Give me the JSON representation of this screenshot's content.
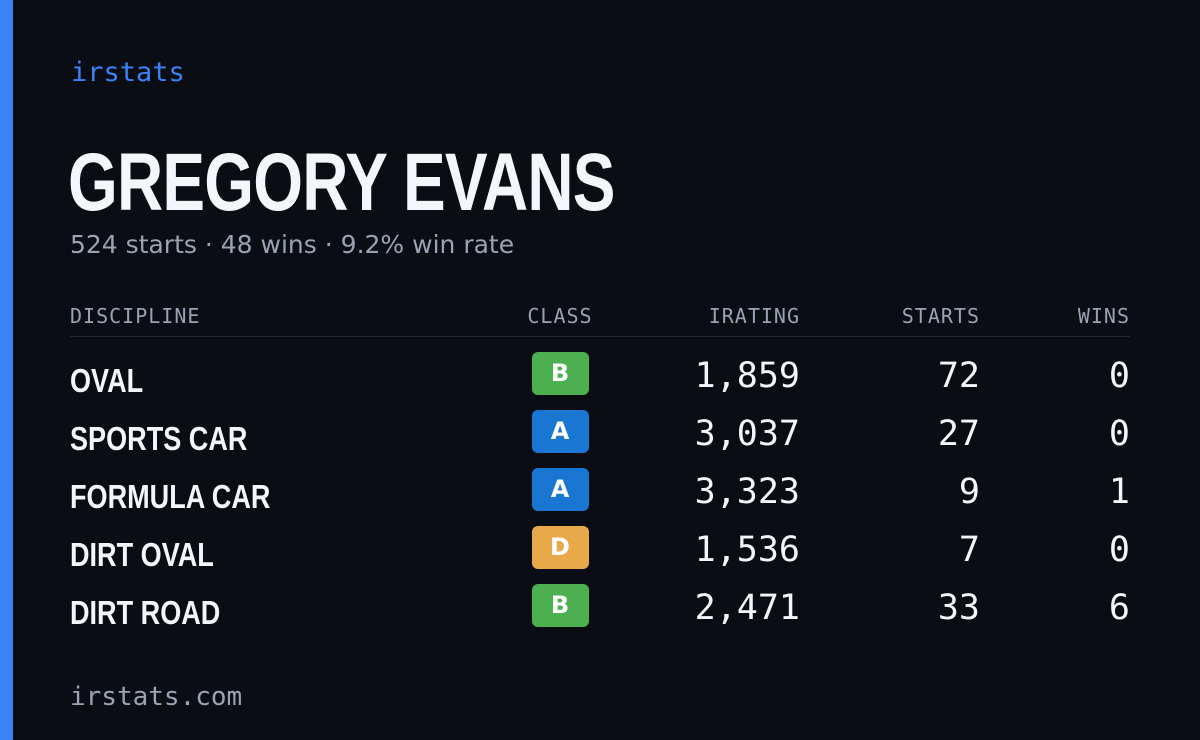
{
  "brand": "irstats",
  "driver": {
    "name": "GREGORY EVANS",
    "starts": "524 starts",
    "wins": "48 wins",
    "win_rate": "9.2% win rate",
    "separator": "·"
  },
  "table": {
    "headers": {
      "discipline": "DISCIPLINE",
      "class": "CLASS",
      "irating": "IRATING",
      "starts": "STARTS",
      "wins": "WINS"
    },
    "rows": [
      {
        "discipline": "OVAL",
        "class": "B",
        "class_color": "#4caf50",
        "irating": "1,859",
        "starts": "72",
        "wins": "0"
      },
      {
        "discipline": "SPORTS CAR",
        "class": "A",
        "class_color": "#1976d2",
        "irating": "3,037",
        "starts": "27",
        "wins": "0"
      },
      {
        "discipline": "FORMULA CAR",
        "class": "A",
        "class_color": "#1976d2",
        "irating": "3,323",
        "starts": "9",
        "wins": "1"
      },
      {
        "discipline": "DIRT OVAL",
        "class": "D",
        "class_color": "#e8a94a",
        "irating": "1,536",
        "starts": "7",
        "wins": "0"
      },
      {
        "discipline": "DIRT ROAD",
        "class": "B",
        "class_color": "#4caf50",
        "irating": "2,471",
        "starts": "33",
        "wins": "6"
      }
    ]
  },
  "footer": "irstats.com",
  "colors": {
    "accent": "#3b82f6",
    "background": "#0a0d14",
    "muted_text": "#9aa3b2"
  }
}
